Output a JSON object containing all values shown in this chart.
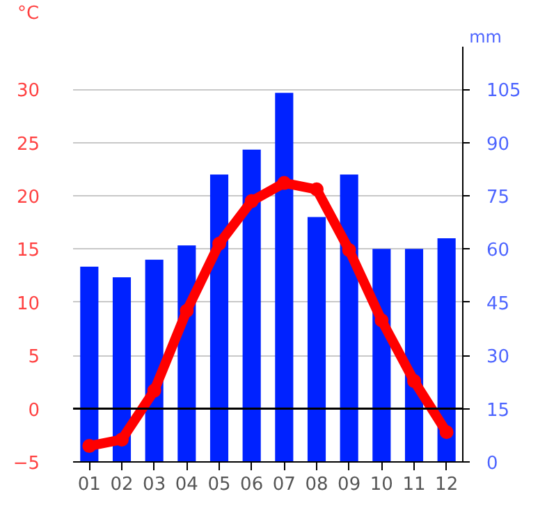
{
  "chart_data": {
    "type": "bar",
    "ylabel": "°C",
    "y2label": "mm",
    "categories": [
      "01",
      "02",
      "03",
      "04",
      "05",
      "06",
      "07",
      "08",
      "09",
      "10",
      "11",
      "12"
    ],
    "series": [
      {
        "axis": "y2",
        "color": "#0022ff",
        "values": [
          55,
          52,
          57,
          61,
          81,
          88,
          104,
          69,
          81,
          60,
          60,
          63
        ]
      },
      {
        "type": "line",
        "axis": "y",
        "color": "#ff0000",
        "marker": "circle",
        "values": [
          -3.5,
          -2.9,
          1.7,
          9.2,
          15.5,
          19.5,
          21.2,
          20.6,
          14.9,
          8.3,
          2.6,
          -2.2
        ]
      }
    ],
    "ylim": [
      -5,
      34
    ],
    "yticks": [
      -5,
      0,
      5,
      10,
      15,
      20,
      25,
      30
    ],
    "y2lim": [
      0,
      117
    ],
    "y2ticks": [
      0,
      15,
      30,
      45,
      60,
      75,
      90,
      105
    ],
    "ref_lines": [
      {
        "axis": "y",
        "value": 0,
        "color": "#000000"
      }
    ],
    "grid": "y"
  }
}
